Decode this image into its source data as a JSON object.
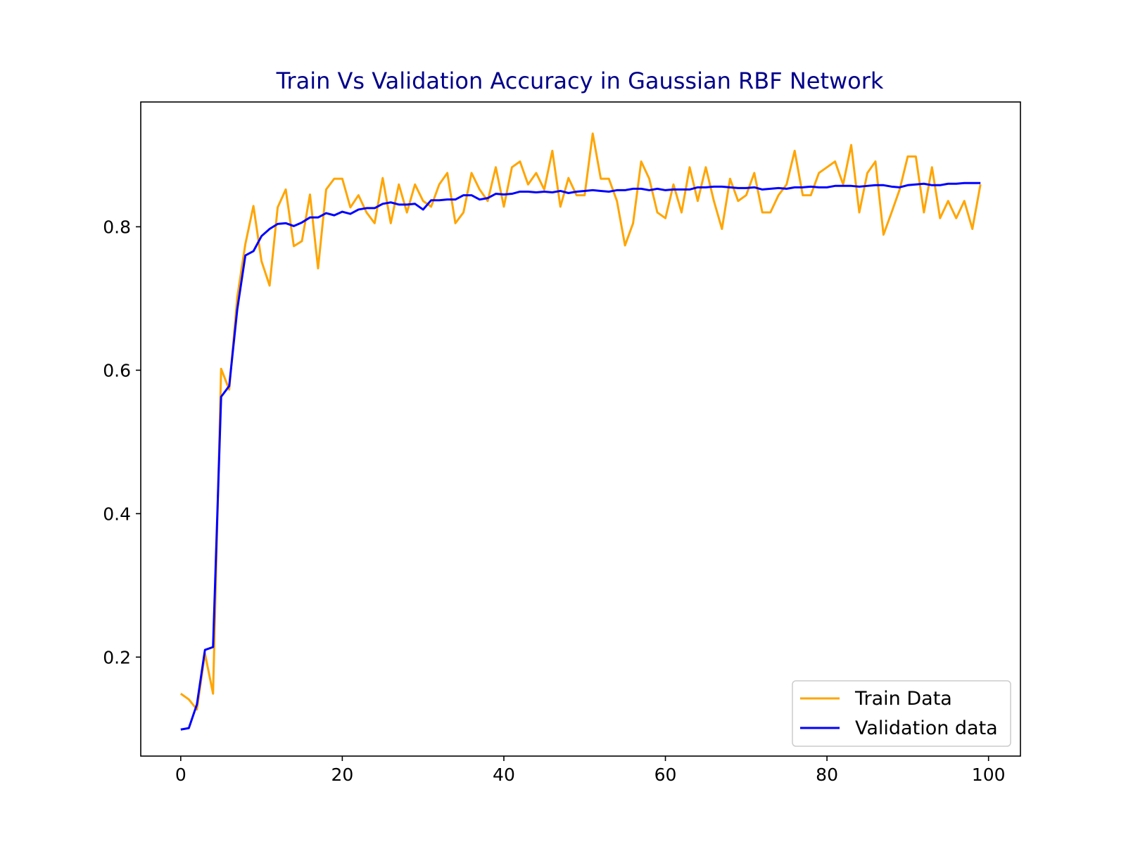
{
  "chart_data": {
    "type": "line",
    "title": "Train Vs Validation Accuracy in Gaussian RBF Network",
    "xlabel": "",
    "ylabel": "",
    "xlim": [
      -4.95,
      103.95
    ],
    "ylim": [
      0.062,
      0.974
    ],
    "x_ticks": [
      0,
      20,
      40,
      60,
      80,
      100
    ],
    "y_ticks": [
      0.2,
      0.4,
      0.6,
      0.8
    ],
    "y_tick_labels": [
      "0.2",
      "0.4",
      "0.6",
      "0.8"
    ],
    "grid": false,
    "legend_position": "lower-right",
    "title_color": "#00008b",
    "series": [
      {
        "name": "Train Data",
        "color": "#ffa500",
        "x_start": 0,
        "values": [
          0.149,
          0.141,
          0.127,
          0.205,
          0.149,
          0.602,
          0.573,
          0.702,
          0.776,
          0.829,
          0.752,
          0.718,
          0.827,
          0.852,
          0.773,
          0.78,
          0.845,
          0.742,
          0.852,
          0.867,
          0.867,
          0.827,
          0.844,
          0.82,
          0.805,
          0.868,
          0.805,
          0.859,
          0.82,
          0.859,
          0.836,
          0.828,
          0.859,
          0.875,
          0.805,
          0.82,
          0.875,
          0.852,
          0.836,
          0.883,
          0.828,
          0.883,
          0.891,
          0.859,
          0.875,
          0.852,
          0.906,
          0.828,
          0.868,
          0.844,
          0.844,
          0.93,
          0.867,
          0.867,
          0.836,
          0.774,
          0.805,
          0.891,
          0.867,
          0.82,
          0.812,
          0.859,
          0.82,
          0.883,
          0.836,
          0.883,
          0.836,
          0.797,
          0.867,
          0.836,
          0.844,
          0.875,
          0.82,
          0.82,
          0.844,
          0.859,
          0.906,
          0.844,
          0.844,
          0.875,
          0.883,
          0.891,
          0.859,
          0.914,
          0.82,
          0.875,
          0.891,
          0.789,
          0.82,
          0.852,
          0.898,
          0.898,
          0.82,
          0.883,
          0.812,
          0.836,
          0.812,
          0.836,
          0.797,
          0.859
        ]
      },
      {
        "name": "Validation data",
        "color": "#0000ff",
        "x_start": 0,
        "values": [
          0.099,
          0.101,
          0.134,
          0.21,
          0.214,
          0.563,
          0.578,
          0.685,
          0.76,
          0.766,
          0.787,
          0.797,
          0.804,
          0.805,
          0.801,
          0.806,
          0.813,
          0.813,
          0.819,
          0.816,
          0.821,
          0.818,
          0.824,
          0.826,
          0.826,
          0.832,
          0.834,
          0.831,
          0.831,
          0.832,
          0.824,
          0.837,
          0.837,
          0.838,
          0.838,
          0.844,
          0.844,
          0.838,
          0.84,
          0.846,
          0.845,
          0.846,
          0.849,
          0.849,
          0.848,
          0.849,
          0.848,
          0.85,
          0.847,
          0.849,
          0.85,
          0.851,
          0.85,
          0.849,
          0.851,
          0.851,
          0.853,
          0.853,
          0.851,
          0.853,
          0.851,
          0.852,
          0.852,
          0.852,
          0.855,
          0.855,
          0.856,
          0.856,
          0.855,
          0.854,
          0.854,
          0.855,
          0.852,
          0.853,
          0.854,
          0.853,
          0.855,
          0.855,
          0.856,
          0.855,
          0.855,
          0.857,
          0.857,
          0.857,
          0.856,
          0.857,
          0.858,
          0.858,
          0.856,
          0.855,
          0.858,
          0.859,
          0.86,
          0.858,
          0.858,
          0.86,
          0.86,
          0.861,
          0.861,
          0.861
        ]
      }
    ]
  }
}
